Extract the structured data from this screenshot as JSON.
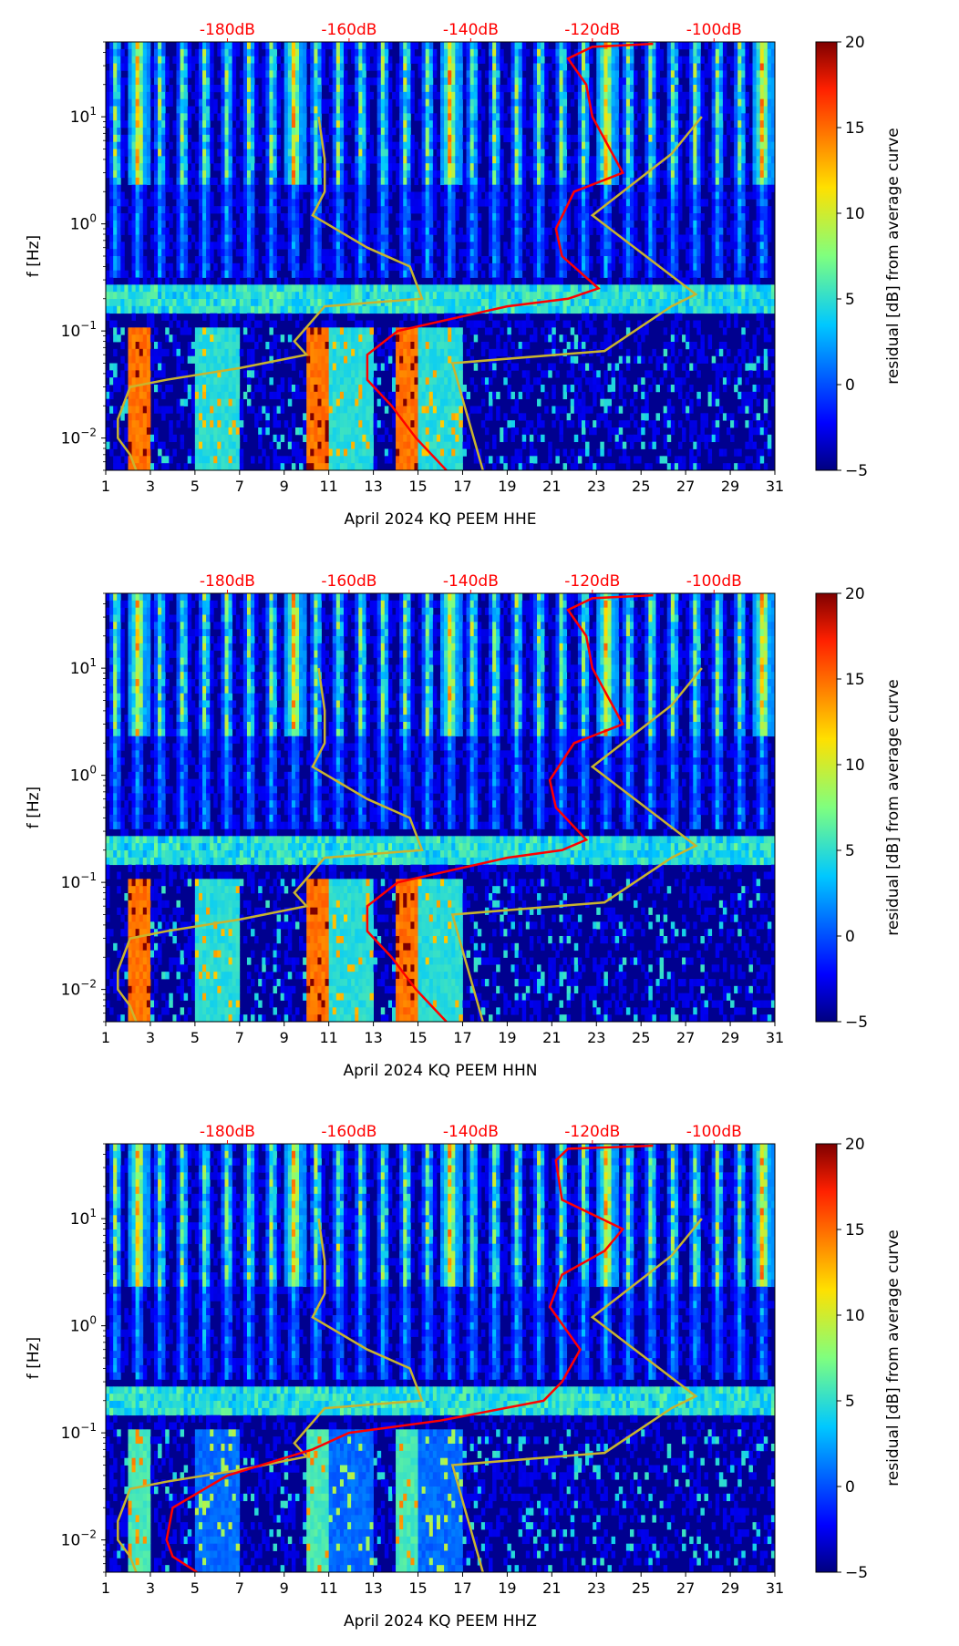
{
  "figure": {
    "colorbar": {
      "label": "residual [dB] from average curve",
      "min": -5,
      "max": 20,
      "ticks": [
        -5,
        0,
        5,
        10,
        15,
        20
      ],
      "tick_labels": [
        "−5",
        "0",
        "5",
        "10",
        "15",
        "20"
      ]
    },
    "top_axis": {
      "color": "#ff0000",
      "db_range": [
        -200,
        -90
      ],
      "ticks": [
        -180,
        -160,
        -140,
        -120,
        -100
      ],
      "tick_labels": [
        "-180dB",
        "-160dB",
        "-140dB",
        "-120dB",
        "-100dB"
      ]
    },
    "x_axis": {
      "range": [
        1,
        31
      ],
      "ticks": [
        1,
        3,
        5,
        7,
        9,
        11,
        13,
        15,
        17,
        19,
        21,
        23,
        25,
        27,
        29,
        31
      ],
      "tick_labels": [
        "1",
        "3",
        "5",
        "7",
        "9",
        "11",
        "13",
        "15",
        "17",
        "19",
        "21",
        "23",
        "25",
        "27",
        "29",
        "31"
      ]
    },
    "y_axis": {
      "label": "f [Hz]",
      "range_hz": [
        0.005,
        50
      ],
      "ticks": [
        0.01,
        0.1,
        1,
        10
      ],
      "tick_exponents": [
        "−2",
        "−1",
        "0",
        "1"
      ]
    },
    "colors": {
      "median_curve": "#ff0000",
      "noise_model": "#c9b42e"
    }
  },
  "chart_data": [
    {
      "type": "heatmap",
      "title": "",
      "xlabel": "April 2024 KQ PEEM  HHE",
      "ylabel": "f [Hz]",
      "xlim": [
        1,
        31
      ],
      "ylim_hz": [
        0.005,
        50
      ],
      "clim_db": [
        -5,
        20
      ],
      "noise_model_curve": {
        "name": "noise model (dB)",
        "points": [
          [
            -195,
            0.005
          ],
          [
            -196,
            0.007
          ],
          [
            -198,
            0.01
          ],
          [
            -198,
            0.015
          ],
          [
            -196,
            0.03
          ],
          [
            -190,
            0.035
          ],
          [
            -178,
            0.045
          ],
          [
            -167,
            0.06
          ],
          [
            -169,
            0.08
          ],
          [
            -164,
            0.17
          ],
          [
            -148,
            0.2
          ],
          [
            -150,
            0.4
          ],
          [
            -157,
            0.6
          ],
          [
            -166,
            1.2
          ],
          [
            -164,
            2.0
          ],
          [
            -164,
            4.0
          ],
          [
            -165,
            10
          ]
        ]
      },
      "noise_model_curve_right": {
        "name": "noise model (dB)",
        "points": [
          [
            -138,
            0.005
          ],
          [
            -143,
            0.05
          ],
          [
            -118,
            0.065
          ],
          [
            -107,
            0.17
          ],
          [
            -103,
            0.22
          ],
          [
            -120,
            1.2
          ],
          [
            -107,
            4.5
          ],
          [
            -102,
            10
          ]
        ]
      },
      "median_curve": {
        "name": "median PSD (dB)",
        "points": [
          [
            -144,
            0.005
          ],
          [
            -149,
            0.01
          ],
          [
            -153,
            0.02
          ],
          [
            -157,
            0.035
          ],
          [
            -157,
            0.06
          ],
          [
            -152,
            0.1
          ],
          [
            -134,
            0.17
          ],
          [
            -124,
            0.2
          ],
          [
            -119,
            0.25
          ],
          [
            -125,
            0.5
          ],
          [
            -126,
            0.9
          ],
          [
            -123,
            2.0
          ],
          [
            -115,
            3.0
          ],
          [
            -120,
            10
          ],
          [
            -121,
            20
          ],
          [
            -124,
            35
          ],
          [
            -120,
            45
          ],
          [
            -110,
            48
          ]
        ]
      }
    },
    {
      "type": "heatmap",
      "title": "",
      "xlabel": "April 2024 KQ PEEM  HHN",
      "ylabel": "f [Hz]",
      "xlim": [
        1,
        31
      ],
      "ylim_hz": [
        0.005,
        50
      ],
      "clim_db": [
        -5,
        20
      ],
      "noise_model_curve": {
        "name": "noise model (dB)",
        "points": [
          [
            -195,
            0.005
          ],
          [
            -196,
            0.007
          ],
          [
            -198,
            0.01
          ],
          [
            -198,
            0.015
          ],
          [
            -196,
            0.03
          ],
          [
            -190,
            0.035
          ],
          [
            -178,
            0.045
          ],
          [
            -167,
            0.06
          ],
          [
            -169,
            0.08
          ],
          [
            -164,
            0.17
          ],
          [
            -148,
            0.2
          ],
          [
            -150,
            0.4
          ],
          [
            -157,
            0.6
          ],
          [
            -166,
            1.2
          ],
          [
            -164,
            2.0
          ],
          [
            -164,
            4.0
          ],
          [
            -165,
            10
          ]
        ]
      },
      "noise_model_curve_right": {
        "name": "noise model (dB)",
        "points": [
          [
            -138,
            0.005
          ],
          [
            -143,
            0.05
          ],
          [
            -118,
            0.065
          ],
          [
            -107,
            0.17
          ],
          [
            -103,
            0.22
          ],
          [
            -120,
            1.2
          ],
          [
            -107,
            4.5
          ],
          [
            -102,
            10
          ]
        ]
      },
      "median_curve": {
        "name": "median PSD (dB)",
        "points": [
          [
            -144,
            0.005
          ],
          [
            -149,
            0.01
          ],
          [
            -153,
            0.02
          ],
          [
            -157,
            0.035
          ],
          [
            -157,
            0.06
          ],
          [
            -152,
            0.1
          ],
          [
            -134,
            0.17
          ],
          [
            -125,
            0.2
          ],
          [
            -121,
            0.25
          ],
          [
            -126,
            0.5
          ],
          [
            -127,
            0.9
          ],
          [
            -123,
            2.0
          ],
          [
            -115,
            3.0
          ],
          [
            -120,
            10
          ],
          [
            -121,
            20
          ],
          [
            -124,
            35
          ],
          [
            -120,
            45
          ],
          [
            -110,
            48
          ]
        ]
      }
    },
    {
      "type": "heatmap",
      "title": "",
      "xlabel": "April 2024 KQ PEEM  HHZ",
      "ylabel": "f [Hz]",
      "xlim": [
        1,
        31
      ],
      "ylim_hz": [
        0.005,
        50
      ],
      "clim_db": [
        -5,
        20
      ],
      "noise_model_curve": {
        "name": "noise model (dB)",
        "points": [
          [
            -195,
            0.005
          ],
          [
            -196,
            0.007
          ],
          [
            -198,
            0.01
          ],
          [
            -198,
            0.015
          ],
          [
            -196,
            0.03
          ],
          [
            -190,
            0.035
          ],
          [
            -178,
            0.045
          ],
          [
            -167,
            0.06
          ],
          [
            -169,
            0.08
          ],
          [
            -164,
            0.17
          ],
          [
            -148,
            0.2
          ],
          [
            -150,
            0.4
          ],
          [
            -157,
            0.6
          ],
          [
            -166,
            1.2
          ],
          [
            -164,
            2.0
          ],
          [
            -164,
            4.0
          ],
          [
            -165,
            10
          ]
        ]
      },
      "noise_model_curve_right": {
        "name": "noise model (dB)",
        "points": [
          [
            -138,
            0.005
          ],
          [
            -143,
            0.05
          ],
          [
            -118,
            0.065
          ],
          [
            -107,
            0.17
          ],
          [
            -103,
            0.22
          ],
          [
            -120,
            1.2
          ],
          [
            -107,
            4.5
          ],
          [
            -102,
            10
          ]
        ]
      },
      "median_curve": {
        "name": "median PSD (dB)",
        "points": [
          [
            -185,
            0.005
          ],
          [
            -189,
            0.007
          ],
          [
            -190,
            0.01
          ],
          [
            -189,
            0.02
          ],
          [
            -180,
            0.04
          ],
          [
            -166,
            0.07
          ],
          [
            -160,
            0.1
          ],
          [
            -145,
            0.13
          ],
          [
            -128,
            0.2
          ],
          [
            -125,
            0.3
          ],
          [
            -122,
            0.6
          ],
          [
            -127,
            1.5
          ],
          [
            -125,
            3.0
          ],
          [
            -118,
            5.0
          ],
          [
            -115,
            8.0
          ],
          [
            -125,
            15
          ],
          [
            -126,
            35
          ],
          [
            -124,
            45
          ],
          [
            -110,
            48
          ]
        ]
      }
    }
  ]
}
